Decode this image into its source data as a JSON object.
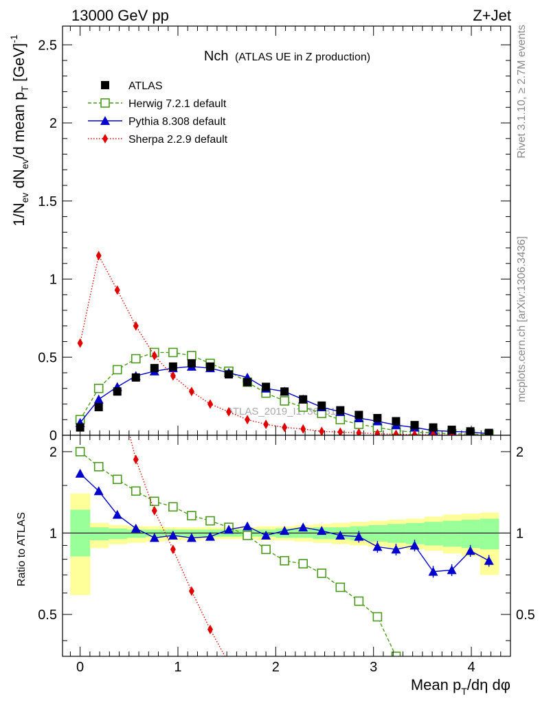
{
  "header": {
    "left": "13000 GeV pp",
    "right": "Z+Jet"
  },
  "side_labels": {
    "rivet": "Rivet 3.1.10, ≥ 2.7M events",
    "mcplots": "mcplots.cern.ch [arXiv:1306.3436]"
  },
  "title": {
    "main": "Nch",
    "sub": "(ATLAS UE in Z production)"
  },
  "watermark": "ATLAS_2019_I1736531",
  "colors": {
    "atlas": "#000000",
    "herwig": "#4a9a1a",
    "pythia": "#0000cc",
    "sherpa": "#e00000",
    "band_inner": "#99ff99",
    "band_outer": "#ffff99"
  },
  "chart_data": [
    {
      "type": "scatter",
      "panel": "main",
      "ylabel": "1/N_ev dN_ev/d mean p_T [GeV]^-1",
      "xlim": [
        -0.18,
        4.4
      ],
      "ylim": [
        0,
        2.62
      ],
      "yticks": [
        0,
        0.5,
        1,
        1.5,
        2,
        2.5
      ],
      "ytick_labels": [
        "0",
        "0.5",
        "1",
        "1.5",
        "2",
        "2.5"
      ],
      "x": [
        0.0,
        0.19,
        0.38,
        0.57,
        0.76,
        0.95,
        1.14,
        1.33,
        1.52,
        1.71,
        1.9,
        2.09,
        2.28,
        2.47,
        2.66,
        2.85,
        3.04,
        3.23,
        3.42,
        3.61,
        3.8,
        3.99,
        4.18
      ],
      "series": [
        {
          "name": "ATLAS",
          "marker": "filled-square",
          "values": [
            0.05,
            0.18,
            0.28,
            0.37,
            0.43,
            0.44,
            0.46,
            0.44,
            0.39,
            0.34,
            0.31,
            0.28,
            0.23,
            0.19,
            0.16,
            0.13,
            0.11,
            0.09,
            0.065,
            0.05,
            0.035,
            0.025,
            0.015
          ]
        },
        {
          "name": "Herwig 7.2.1 default",
          "marker": "open-square",
          "line": "dashed",
          "values": [
            0.1,
            0.3,
            0.42,
            0.49,
            0.53,
            0.53,
            0.51,
            0.46,
            0.41,
            0.34,
            0.27,
            0.22,
            0.18,
            0.14,
            0.1,
            0.07,
            0.05,
            0.03,
            0.02,
            0.015,
            0.01,
            0.008,
            0.005
          ]
        },
        {
          "name": "Pythia 8.308 default",
          "marker": "filled-triangle",
          "line": "solid",
          "values": [
            0.08,
            0.23,
            0.31,
            0.38,
            0.41,
            0.43,
            0.44,
            0.43,
            0.4,
            0.37,
            0.3,
            0.28,
            0.23,
            0.18,
            0.15,
            0.11,
            0.09,
            0.065,
            0.05,
            0.03,
            0.025,
            0.02,
            0.01
          ]
        },
        {
          "name": "Sherpa 2.2.9 default",
          "marker": "filled-diamond",
          "line": "dotted",
          "values": [
            0.59,
            1.15,
            0.93,
            0.7,
            0.51,
            0.38,
            0.28,
            0.2,
            0.15,
            0.1,
            0.07,
            0.05,
            0.04,
            0.025,
            0.02,
            0.015,
            0.01,
            0.006,
            0.004,
            0.003,
            0.002,
            0.001,
            0.001
          ]
        }
      ]
    },
    {
      "type": "scatter",
      "panel": "ratio",
      "xlabel": "Mean p_T/dη dφ",
      "ylabel": "Ratio to ATLAS",
      "xlim": [
        -0.18,
        4.4
      ],
      "ylim": [
        0.35,
        2.3
      ],
      "yticks": [
        0.5,
        1,
        2
      ],
      "ytick_labels": [
        "0.5",
        "1",
        "2"
      ],
      "xticks": [
        0,
        1,
        2,
        3,
        4
      ],
      "xtick_labels": [
        "0",
        "1",
        "2",
        "3",
        "4"
      ],
      "band": {
        "bin_edges": [
          -0.1,
          0.1,
          0.29,
          0.48,
          0.67,
          0.86,
          1.05,
          1.24,
          1.43,
          1.62,
          1.81,
          2.0,
          2.19,
          2.38,
          2.57,
          2.76,
          2.95,
          3.14,
          3.33,
          3.52,
          3.71,
          3.9,
          4.09,
          4.28
        ],
        "outer_lo": [
          0.59,
          0.88,
          0.91,
          0.92,
          0.93,
          0.94,
          0.94,
          0.95,
          0.95,
          0.95,
          0.94,
          0.94,
          0.93,
          0.92,
          0.91,
          0.9,
          0.89,
          0.88,
          0.87,
          0.86,
          0.84,
          0.82,
          0.7
        ],
        "outer_hi": [
          1.4,
          1.09,
          1.07,
          1.06,
          1.06,
          1.05,
          1.05,
          1.05,
          1.05,
          1.05,
          1.06,
          1.06,
          1.07,
          1.08,
          1.09,
          1.1,
          1.11,
          1.12,
          1.13,
          1.15,
          1.17,
          1.18,
          1.19
        ],
        "inner_lo": [
          0.82,
          0.94,
          0.95,
          0.96,
          0.97,
          0.97,
          0.97,
          0.97,
          0.97,
          0.97,
          0.97,
          0.96,
          0.96,
          0.95,
          0.95,
          0.94,
          0.93,
          0.92,
          0.91,
          0.9,
          0.89,
          0.88,
          0.87
        ],
        "inner_hi": [
          1.22,
          1.05,
          1.04,
          1.03,
          1.03,
          1.03,
          1.03,
          1.03,
          1.03,
          1.03,
          1.03,
          1.04,
          1.04,
          1.05,
          1.05,
          1.06,
          1.07,
          1.08,
          1.09,
          1.1,
          1.11,
          1.12,
          1.13
        ]
      },
      "series": [
        {
          "name": "Herwig 7.2.1 default",
          "values": [
            2.0,
            1.76,
            1.58,
            1.43,
            1.31,
            1.25,
            1.16,
            1.11,
            1.05,
            0.98,
            0.87,
            0.79,
            0.77,
            0.71,
            0.63,
            0.56,
            0.49,
            0.35,
            null,
            null,
            null,
            null,
            null
          ]
        },
        {
          "name": "Pythia 8.308 default",
          "values": [
            1.66,
            1.43,
            1.17,
            1.04,
            0.96,
            0.98,
            0.96,
            0.97,
            1.03,
            1.06,
            0.98,
            1.02,
            1.05,
            1.02,
            0.98,
            0.97,
            0.89,
            0.87,
            0.9,
            0.72,
            0.73,
            0.86,
            0.79
          ]
        },
        {
          "name": "Sherpa 2.2.9 default",
          "values": [
            null,
            null,
            null,
            1.87,
            1.21,
            0.87,
            0.61,
            0.44,
            0.33,
            null,
            null,
            null,
            null,
            null,
            null,
            null,
            null,
            null,
            null,
            null,
            null,
            null,
            null
          ]
        }
      ]
    }
  ]
}
